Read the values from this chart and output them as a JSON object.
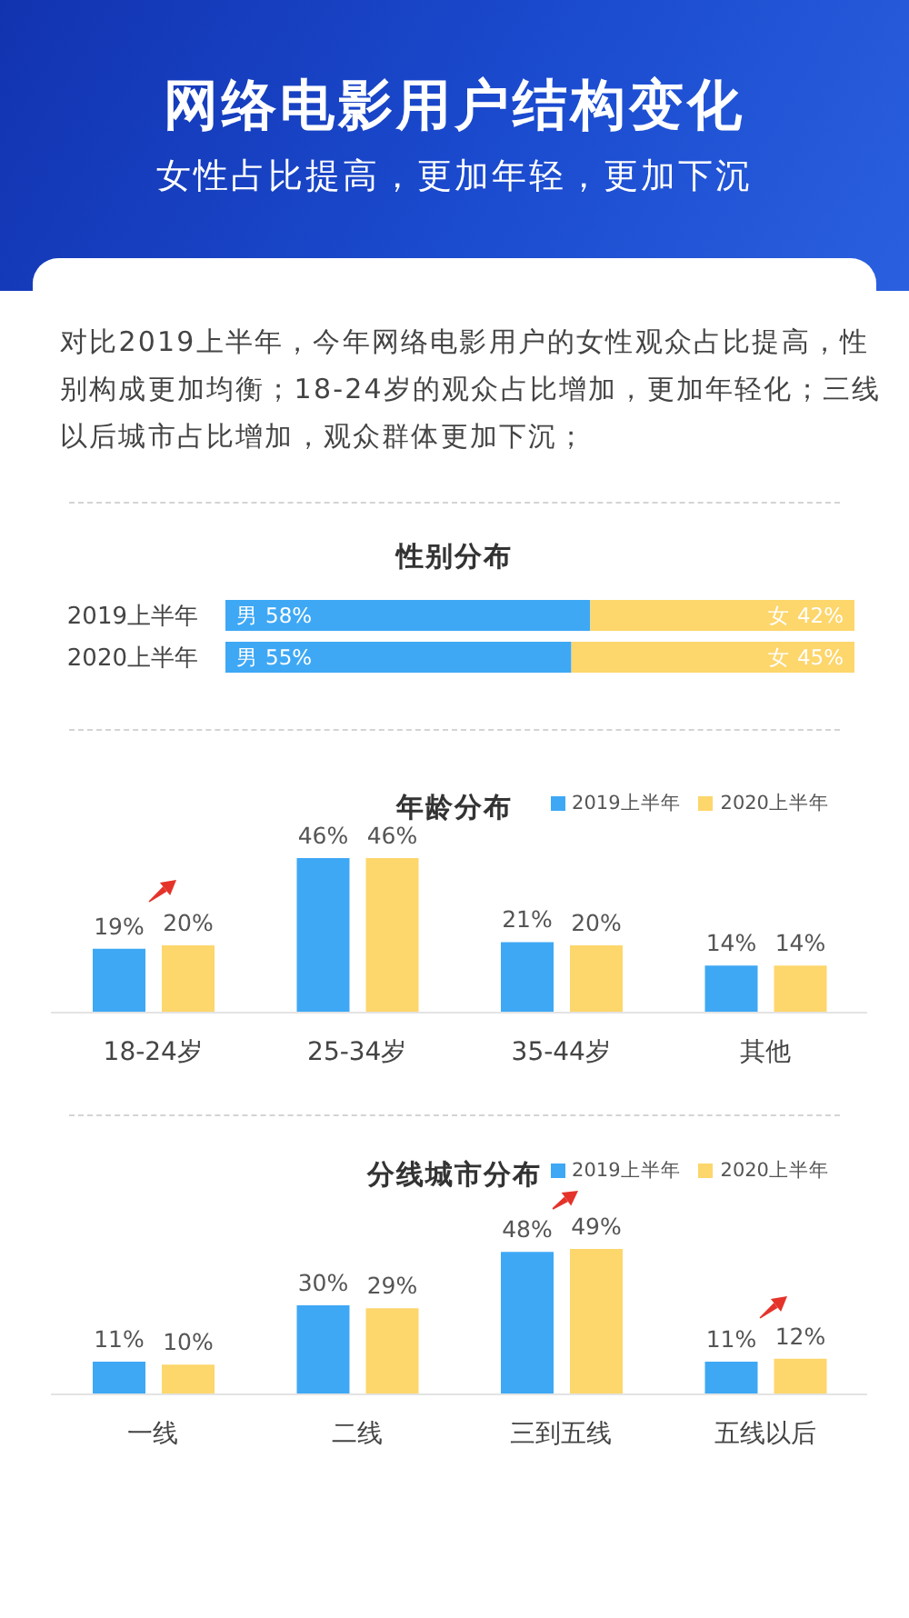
{
  "chart_data": [
    {
      "type": "other",
      "title": "网络电影用户结构变化",
      "subtitle": "女性占比提高，更加年轻，更加下沉",
      "annotations": [
        "对比2019上半年，今年网络电影用户的女性观众占比提高，性别构成更加均衡；18-24岁的观众占比增加，更加年轻化；三线以后城市占比增加，观众群体更加下沉；"
      ]
    },
    {
      "type": "bar",
      "title": "性别分布",
      "orientation": "horizontal",
      "stacked": true,
      "categories": [
        "2019上半年",
        "2020上半年"
      ],
      "series": [
        {
          "name": "男",
          "color": "#3ea8f5",
          "values": [
            58,
            55
          ],
          "value_labels": [
            "58%",
            "55%"
          ]
        },
        {
          "name": "女",
          "color": "#fdd66c",
          "values": [
            42,
            45
          ],
          "value_labels": [
            "42%",
            "45%"
          ]
        }
      ],
      "tick_labels": "y"
    },
    {
      "type": "bar",
      "title": "年龄分布",
      "categories": [
        "18-24岁",
        "25-34岁",
        "35-44岁",
        "其他"
      ],
      "series": [
        {
          "name": "2019上半年",
          "color": "#3ea8f5",
          "values": [
            19,
            46,
            21,
            14
          ],
          "value_labels": [
            "19%",
            "46%",
            "21%",
            "14%"
          ]
        },
        {
          "name": "2020上半年",
          "color": "#fdd66c",
          "values": [
            20,
            46,
            20,
            14
          ],
          "value_labels": [
            "20%",
            "46%",
            "20%",
            "14%"
          ]
        }
      ],
      "legend": "top right",
      "tick_labels": "x"
    },
    {
      "type": "bar",
      "title": "分线城市分布",
      "categories": [
        "一线",
        "二线",
        "三到五线",
        "五线以后"
      ],
      "series": [
        {
          "name": "2019上半年",
          "color": "#3ea8f5",
          "values": [
            11,
            30,
            48,
            11
          ],
          "value_labels": [
            "11%",
            "30%",
            "48%",
            "11%"
          ]
        },
        {
          "name": "2020上半年",
          "color": "#fdd66c",
          "values": [
            10,
            29,
            49,
            12
          ],
          "value_labels": [
            "10%",
            "29%",
            "49%",
            "12%"
          ]
        }
      ],
      "legend": "top right",
      "tick_labels": "x"
    }
  ]
}
